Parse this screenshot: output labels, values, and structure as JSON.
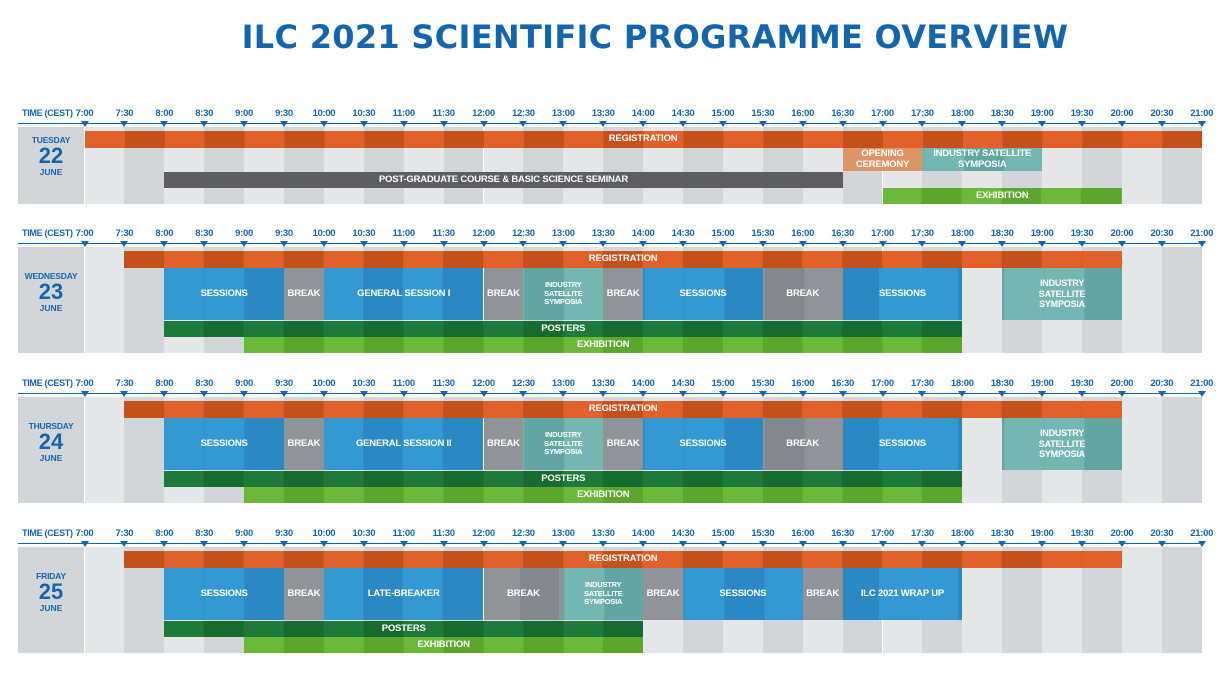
{
  "title": "ILC 2021 SCIENTIFIC PROGRAMME OVERVIEW",
  "time_label": "TIME (CEST)",
  "times": [
    "7:00",
    "7:30",
    "8:00",
    "8:30",
    "9:00",
    "9:30",
    "10:00",
    "10:30",
    "11:00",
    "11:30",
    "12:00",
    "12:30",
    "13:00",
    "13:30",
    "14:00",
    "14:30",
    "15:00",
    "15:30",
    "16:00",
    "16:30",
    "17:00",
    "17:30",
    "18:00",
    "18:30",
    "19:00",
    "19:30",
    "20:00",
    "20:30",
    "21:00"
  ],
  "colors": {
    "registration": "#e0612a",
    "registration_dark": "#c4501c",
    "sessions": "#3399d0",
    "sessions_dark": "#2a88c2",
    "break": "#909398",
    "break_dark": "#84888d",
    "industry": "#74b6b2",
    "industry_dark": "#62a6a3",
    "posters": "#1d7a38",
    "posters_dark": "#166b2f",
    "exhibition": "#6bb83a",
    "exhibition_dark": "#5ca62e",
    "postgrad": "#5e5e60",
    "opening": "#dd9566",
    "grid_light": "#e5e6e8",
    "grid_dark": "#d3d6d9",
    "title": "#1565ad"
  },
  "days": [
    {
      "name": "TUESDAY",
      "date": "22",
      "month": "JUNE",
      "blocks": [
        {
          "key": "registration",
          "label": "REGISTRATION",
          "start": "7:00",
          "end": "21:00",
          "row": "top"
        },
        {
          "key": "opening",
          "label": "OPENING\nCEREMONY",
          "start": "16:30",
          "end": "17:30",
          "row": "mid"
        },
        {
          "key": "industry",
          "label": "INDUSTRY SATELLITE\nSYMPOSIA",
          "start": "17:30",
          "end": "19:00",
          "row": "mid"
        },
        {
          "key": "postgrad",
          "label": "POST-GRADUATE COURSE & BASIC SCIENCE SEMINAR",
          "start": "8:00",
          "end": "16:30",
          "row": "post"
        },
        {
          "key": "exhibition",
          "label": "EXHIBITION",
          "start": "17:00",
          "end": "20:00",
          "row": "exhib"
        }
      ]
    },
    {
      "name": "WEDNESDAY",
      "date": "23",
      "month": "JUNE",
      "blocks": [
        {
          "key": "registration",
          "label": "REGISTRATION",
          "start": "7:30",
          "end": "20:00",
          "row": "top"
        },
        {
          "key": "sessions",
          "label": "SESSIONS",
          "start": "8:00",
          "end": "9:30",
          "row": "main"
        },
        {
          "key": "break",
          "label": "BREAK",
          "start": "9:30",
          "end": "10:00",
          "row": "main"
        },
        {
          "key": "sessions",
          "label": "GENERAL SESSION I",
          "start": "10:00",
          "end": "12:00",
          "row": "main"
        },
        {
          "key": "break",
          "label": "BREAK",
          "start": "12:00",
          "end": "12:30",
          "row": "main"
        },
        {
          "key": "industry",
          "label": "INDUSTRY\nSATELLITE\nSYMPOSIA",
          "start": "12:30",
          "end": "13:30",
          "row": "main",
          "size": "small"
        },
        {
          "key": "break",
          "label": "BREAK",
          "start": "13:30",
          "end": "14:00",
          "row": "main"
        },
        {
          "key": "sessions",
          "label": "SESSIONS",
          "start": "14:00",
          "end": "15:30",
          "row": "main"
        },
        {
          "key": "break",
          "label": "BREAK",
          "start": "15:30",
          "end": "16:30",
          "row": "main"
        },
        {
          "key": "sessions",
          "label": "SESSIONS",
          "start": "16:30",
          "end": "18:00",
          "row": "main"
        },
        {
          "key": "industry",
          "label": "INDUSTRY\nSATELLITE\nSYMPOSIA",
          "start": "18:30",
          "end": "20:00",
          "row": "main",
          "size": "md"
        },
        {
          "key": "posters",
          "label": "POSTERS",
          "start": "8:00",
          "end": "18:00",
          "row": "posters"
        },
        {
          "key": "exhibition",
          "label": "EXHIBITION",
          "start": "9:00",
          "end": "18:00",
          "row": "exhib"
        }
      ]
    },
    {
      "name": "THURSDAY",
      "date": "24",
      "month": "JUNE",
      "blocks": [
        {
          "key": "registration",
          "label": "REGISTRATION",
          "start": "7:30",
          "end": "20:00",
          "row": "top"
        },
        {
          "key": "sessions",
          "label": "SESSIONS",
          "start": "8:00",
          "end": "9:30",
          "row": "main"
        },
        {
          "key": "break",
          "label": "BREAK",
          "start": "9:30",
          "end": "10:00",
          "row": "main"
        },
        {
          "key": "sessions",
          "label": "GENERAL SESSION II",
          "start": "10:00",
          "end": "12:00",
          "row": "main"
        },
        {
          "key": "break",
          "label": "BREAK",
          "start": "12:00",
          "end": "12:30",
          "row": "main"
        },
        {
          "key": "industry",
          "label": "INDUSTRY\nSATELLITE\nSYMPOSIA",
          "start": "12:30",
          "end": "13:30",
          "row": "main",
          "size": "small"
        },
        {
          "key": "break",
          "label": "BREAK",
          "start": "13:30",
          "end": "14:00",
          "row": "main"
        },
        {
          "key": "sessions",
          "label": "SESSIONS",
          "start": "14:00",
          "end": "15:30",
          "row": "main"
        },
        {
          "key": "break",
          "label": "BREAK",
          "start": "15:30",
          "end": "16:30",
          "row": "main"
        },
        {
          "key": "sessions",
          "label": "SESSIONS",
          "start": "16:30",
          "end": "18:00",
          "row": "main"
        },
        {
          "key": "industry",
          "label": "INDUSTRY\nSATELLITE\nSYMPOSIA",
          "start": "18:30",
          "end": "20:00",
          "row": "main",
          "size": "md"
        },
        {
          "key": "posters",
          "label": "POSTERS",
          "start": "8:00",
          "end": "18:00",
          "row": "posters"
        },
        {
          "key": "exhibition",
          "label": "EXHIBITION",
          "start": "9:00",
          "end": "18:00",
          "row": "exhib"
        }
      ]
    },
    {
      "name": "FRIDAY",
      "date": "25",
      "month": "JUNE",
      "blocks": [
        {
          "key": "registration",
          "label": "REGISTRATION",
          "start": "7:30",
          "end": "20:00",
          "row": "top"
        },
        {
          "key": "sessions",
          "label": "SESSIONS",
          "start": "8:00",
          "end": "9:30",
          "row": "main"
        },
        {
          "key": "break",
          "label": "BREAK",
          "start": "9:30",
          "end": "10:00",
          "row": "main"
        },
        {
          "key": "sessions",
          "label": "LATE-BREAKER",
          "start": "10:00",
          "end": "12:00",
          "row": "main"
        },
        {
          "key": "break",
          "label": "BREAK",
          "start": "12:00",
          "end": "13:00",
          "row": "main"
        },
        {
          "key": "industry",
          "label": "INDUSTRY\nSATELLITE\nSYMPOSIA",
          "start": "13:00",
          "end": "14:00",
          "row": "main",
          "size": "small"
        },
        {
          "key": "break",
          "label": "BREAK",
          "start": "14:00",
          "end": "14:30",
          "row": "main"
        },
        {
          "key": "sessions",
          "label": "SESSIONS",
          "start": "14:30",
          "end": "16:00",
          "row": "main"
        },
        {
          "key": "break",
          "label": "BREAK",
          "start": "16:00",
          "end": "16:30",
          "row": "main"
        },
        {
          "key": "sessions",
          "label": "ILC 2021 WRAP UP",
          "start": "16:30",
          "end": "18:00",
          "row": "main"
        },
        {
          "key": "posters",
          "label": "POSTERS",
          "start": "8:00",
          "end": "14:00",
          "row": "posters"
        },
        {
          "key": "exhibition",
          "label": "EXHIBITION",
          "start": "9:00",
          "end": "14:00",
          "row": "exhib"
        }
      ]
    }
  ]
}
